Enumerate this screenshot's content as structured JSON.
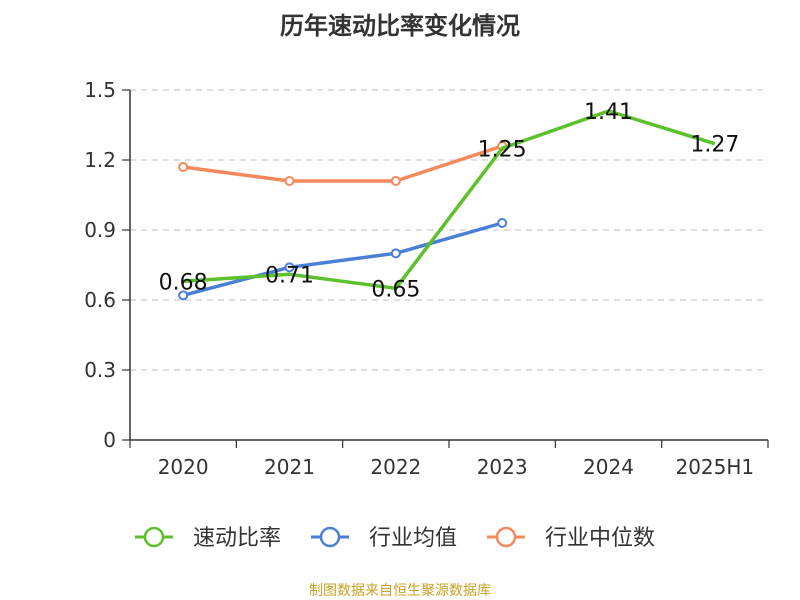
{
  "title": "历年速动比率变化情况",
  "footer": "制图数据来自恒生聚源数据库",
  "chart_data": {
    "type": "line",
    "categories": [
      "2020",
      "2021",
      "2022",
      "2023",
      "2024",
      "2025H1"
    ],
    "ylim": [
      0,
      1.5
    ],
    "yticks": [
      "0",
      "0.3",
      "0.6",
      "0.9",
      "1.2",
      "1.5"
    ],
    "grid": true,
    "legend_position": "bottom",
    "series": [
      {
        "name": "速动比率",
        "color": "#5cc12a",
        "values": [
          0.68,
          0.71,
          0.65,
          1.25,
          1.41,
          1.27
        ],
        "labels": [
          "0.68",
          "0.71",
          "0.65",
          "1.25",
          "1.41",
          "1.27"
        ]
      },
      {
        "name": "行业均值",
        "color": "#4a7fd8",
        "values": [
          0.62,
          0.74,
          0.8,
          0.93,
          null,
          null
        ]
      },
      {
        "name": "行业中位数",
        "color": "#f5895a",
        "values": [
          1.17,
          1.11,
          1.11,
          1.26,
          null,
          null
        ]
      }
    ]
  }
}
